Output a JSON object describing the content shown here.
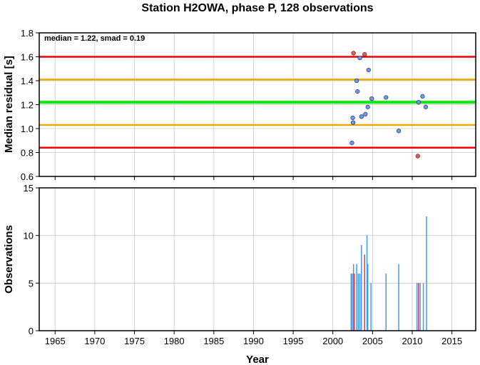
{
  "chart_data": [
    {
      "type": "scatter",
      "title": "Station H2OWA, phase P, 128 observations",
      "ylabel": "Median residual [s]",
      "annotation": "median = 1.22, smad = 0.19",
      "xlim": [
        1963,
        2018
      ],
      "ylim": [
        0.6,
        1.8
      ],
      "yticks": [
        "0.6",
        "0.8",
        "1.0",
        "1.2",
        "1.4",
        "1.6",
        "1.8"
      ],
      "grid": true,
      "reference_lines": [
        {
          "y": 1.22,
          "color": "#00ee00",
          "role": "median"
        },
        {
          "y": 1.41,
          "color": "#f0a800",
          "role": "+1 smad"
        },
        {
          "y": 1.03,
          "color": "#f0a800",
          "role": "-1 smad"
        },
        {
          "y": 1.6,
          "color": "#ee0000",
          "role": "+2 smad"
        },
        {
          "y": 0.84,
          "color": "#ee0000",
          "role": "-2 smad"
        }
      ],
      "series": [
        {
          "color": "#6699ff",
          "outlier": false,
          "points": [
            [
              2002.4,
              0.88
            ],
            [
              2002.5,
              1.09
            ],
            [
              2002.55,
              1.05
            ],
            [
              2003.0,
              1.4
            ],
            [
              2003.1,
              1.31
            ],
            [
              2003.4,
              1.59
            ],
            [
              2003.6,
              1.1
            ],
            [
              2004.1,
              1.12
            ],
            [
              2004.4,
              1.18
            ],
            [
              2004.5,
              1.49
            ],
            [
              2004.9,
              1.25
            ],
            [
              2006.7,
              1.26
            ],
            [
              2008.3,
              0.98
            ],
            [
              2010.8,
              1.22
            ],
            [
              2011.3,
              1.27
            ],
            [
              2011.7,
              1.18
            ]
          ]
        },
        {
          "color": "#ff5544",
          "outlier": true,
          "points": [
            [
              2002.6,
              1.63
            ],
            [
              2004.0,
              1.62
            ],
            [
              2010.7,
              0.77
            ]
          ]
        }
      ]
    },
    {
      "type": "bar",
      "xlabel": "Year",
      "ylabel": "Observations",
      "xlim": [
        1963,
        2018
      ],
      "ylim": [
        0,
        15
      ],
      "xticks": [
        "1965",
        "1970",
        "1975",
        "1980",
        "1985",
        "1990",
        "1995",
        "2000",
        "2005",
        "2010",
        "2015"
      ],
      "yticks": [
        "0",
        "5",
        "10",
        "15"
      ],
      "grid": true,
      "bars": [
        {
          "x": 2002.3,
          "value": 6,
          "color": "#4499ee"
        },
        {
          "x": 2002.45,
          "value": 6,
          "color": "#4499ee"
        },
        {
          "x": 2002.6,
          "value": 7,
          "color": "#4499ee"
        },
        {
          "x": 2002.7,
          "value": 6,
          "color": "#ee3333"
        },
        {
          "x": 2003.0,
          "value": 7,
          "color": "#4499ee"
        },
        {
          "x": 2003.2,
          "value": 6,
          "color": "#4499ee"
        },
        {
          "x": 2003.4,
          "value": 6,
          "color": "#4499ee"
        },
        {
          "x": 2003.6,
          "value": 9,
          "color": "#4499ee"
        },
        {
          "x": 2004.0,
          "value": 8,
          "color": "#ee3333"
        },
        {
          "x": 2004.3,
          "value": 10,
          "color": "#4499ee"
        },
        {
          "x": 2004.4,
          "value": 7,
          "color": "#4499ee"
        },
        {
          "x": 2004.8,
          "value": 5,
          "color": "#4499ee"
        },
        {
          "x": 2006.7,
          "value": 6,
          "color": "#4499ee"
        },
        {
          "x": 2008.3,
          "value": 7,
          "color": "#4499ee"
        },
        {
          "x": 2010.6,
          "value": 5,
          "color": "#4499ee"
        },
        {
          "x": 2010.8,
          "value": 5,
          "color": "#ee3333"
        },
        {
          "x": 2011.0,
          "value": 5,
          "color": "#4499ee"
        },
        {
          "x": 2011.4,
          "value": 5,
          "color": "#4499ee"
        },
        {
          "x": 2011.8,
          "value": 12,
          "color": "#4499ee"
        }
      ]
    }
  ]
}
